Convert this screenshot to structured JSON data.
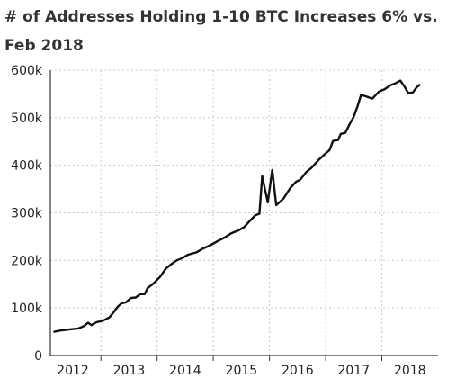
{
  "chart_data": {
    "type": "line",
    "title": "# of Addresses Holding 1-10 BTC Increases 6% vs. Feb 2018",
    "xlabel": "",
    "ylabel": "",
    "xlim": [
      2011.6,
      2018.5
    ],
    "ylim": [
      0,
      600000
    ],
    "grid": true,
    "x_ticks": [
      {
        "value": 2012.0,
        "label": "2012"
      },
      {
        "value": 2013.0,
        "label": "2013"
      },
      {
        "value": 2014.0,
        "label": "2014"
      },
      {
        "value": 2015.0,
        "label": "2015"
      },
      {
        "value": 2016.0,
        "label": "2016"
      },
      {
        "value": 2017.0,
        "label": "2017"
      },
      {
        "value": 2018.0,
        "label": "2018"
      }
    ],
    "y_ticks": [
      {
        "value": 0,
        "label": "0"
      },
      {
        "value": 100000,
        "label": "100k"
      },
      {
        "value": 200000,
        "label": "200k"
      },
      {
        "value": 300000,
        "label": "300k"
      },
      {
        "value": 400000,
        "label": "400k"
      },
      {
        "value": 500000,
        "label": "500k"
      },
      {
        "value": 600000,
        "label": "600k"
      }
    ],
    "series": [
      {
        "color": "#111111",
        "points": [
          [
            2011.67,
            50000
          ],
          [
            2011.8,
            53000
          ],
          [
            2011.95,
            55000
          ],
          [
            2012.1,
            57000
          ],
          [
            2012.2,
            62000
          ],
          [
            2012.27,
            69000
          ],
          [
            2012.33,
            64000
          ],
          [
            2012.42,
            70000
          ],
          [
            2012.53,
            73000
          ],
          [
            2012.65,
            80000
          ],
          [
            2012.72,
            90000
          ],
          [
            2012.8,
            103000
          ],
          [
            2012.87,
            110000
          ],
          [
            2012.95,
            112000
          ],
          [
            2013.03,
            121000
          ],
          [
            2013.12,
            122000
          ],
          [
            2013.2,
            129000
          ],
          [
            2013.28,
            129000
          ],
          [
            2013.33,
            142000
          ],
          [
            2013.42,
            150000
          ],
          [
            2013.55,
            165000
          ],
          [
            2013.65,
            182000
          ],
          [
            2013.75,
            192000
          ],
          [
            2013.85,
            200000
          ],
          [
            2013.95,
            205000
          ],
          [
            2014.05,
            212000
          ],
          [
            2014.2,
            217000
          ],
          [
            2014.32,
            225000
          ],
          [
            2014.45,
            232000
          ],
          [
            2014.57,
            240000
          ],
          [
            2014.7,
            248000
          ],
          [
            2014.82,
            257000
          ],
          [
            2014.95,
            263000
          ],
          [
            2015.05,
            270000
          ],
          [
            2015.15,
            283000
          ],
          [
            2015.25,
            295000
          ],
          [
            2015.32,
            298000
          ],
          [
            2015.37,
            377000
          ],
          [
            2015.47,
            322000
          ],
          [
            2015.55,
            390000
          ],
          [
            2015.62,
            316000
          ],
          [
            2015.75,
            330000
          ],
          [
            2015.87,
            352000
          ],
          [
            2015.97,
            365000
          ],
          [
            2016.05,
            370000
          ],
          [
            2016.15,
            385000
          ],
          [
            2016.25,
            395000
          ],
          [
            2016.38,
            412000
          ],
          [
            2016.5,
            425000
          ],
          [
            2016.57,
            432000
          ],
          [
            2016.63,
            451000
          ],
          [
            2016.72,
            453000
          ],
          [
            2016.77,
            466000
          ],
          [
            2016.85,
            468000
          ],
          [
            2016.93,
            487000
          ],
          [
            2017.0,
            502000
          ],
          [
            2017.07,
            525000
          ],
          [
            2017.13,
            548000
          ],
          [
            2017.22,
            545000
          ],
          [
            2017.33,
            540000
          ],
          [
            2017.45,
            555000
          ],
          [
            2017.55,
            560000
          ],
          [
            2017.65,
            568000
          ],
          [
            2017.75,
            573000
          ],
          [
            2017.83,
            578000
          ],
          [
            2017.9,
            566000
          ],
          [
            2017.97,
            552000
          ],
          [
            2018.05,
            553000
          ],
          [
            2018.12,
            564000
          ],
          [
            2018.17,
            569000
          ]
        ]
      }
    ]
  }
}
